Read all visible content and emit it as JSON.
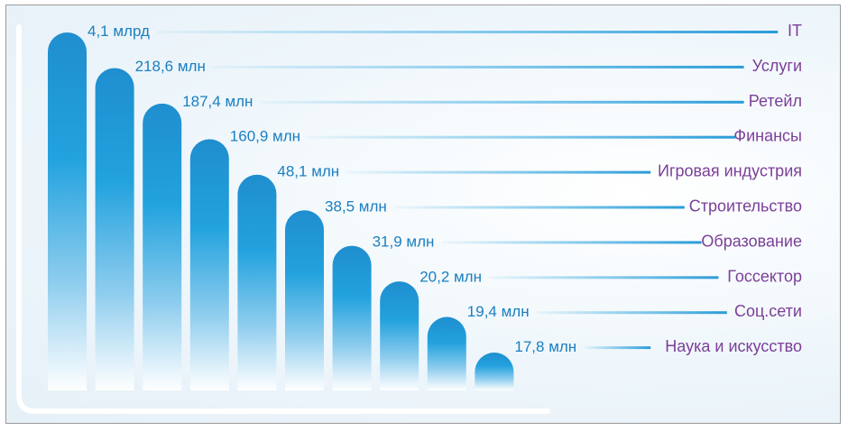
{
  "chart_data": {
    "type": "bar",
    "categories": [
      "IT",
      "Услуги",
      "Ретейл",
      "Финансы",
      "Игровая индустрия",
      "Строительство",
      "Образование",
      "Госсектор",
      "Соц.сети",
      "Наука и искусство"
    ],
    "value_labels": [
      "4,1 млрд",
      "218,6 млн",
      "187,4 млн",
      "160,9 млн",
      "48,1 млн",
      "38,5 млн",
      "31,9 млн",
      "20,2 млн",
      "19,4 млн",
      "17,8 млн"
    ],
    "values": [
      4100000000,
      218600000,
      187400000,
      160900000,
      48100000,
      38500000,
      31900000,
      20200000,
      19400000,
      17800000
    ],
    "title": "",
    "xlabel": "",
    "ylabel": "",
    "grid": false,
    "legend": "none",
    "colors": {
      "bar_top": "#1e8fd0",
      "bar_mid": "#22a0dd",
      "bar_fade": "#ffffff",
      "value_text": "#1a7fc0",
      "category_text": "#7b3f98",
      "leader_line": "#35a8e0",
      "axis": "#ffffff",
      "frame": "#9a9a9a"
    }
  }
}
